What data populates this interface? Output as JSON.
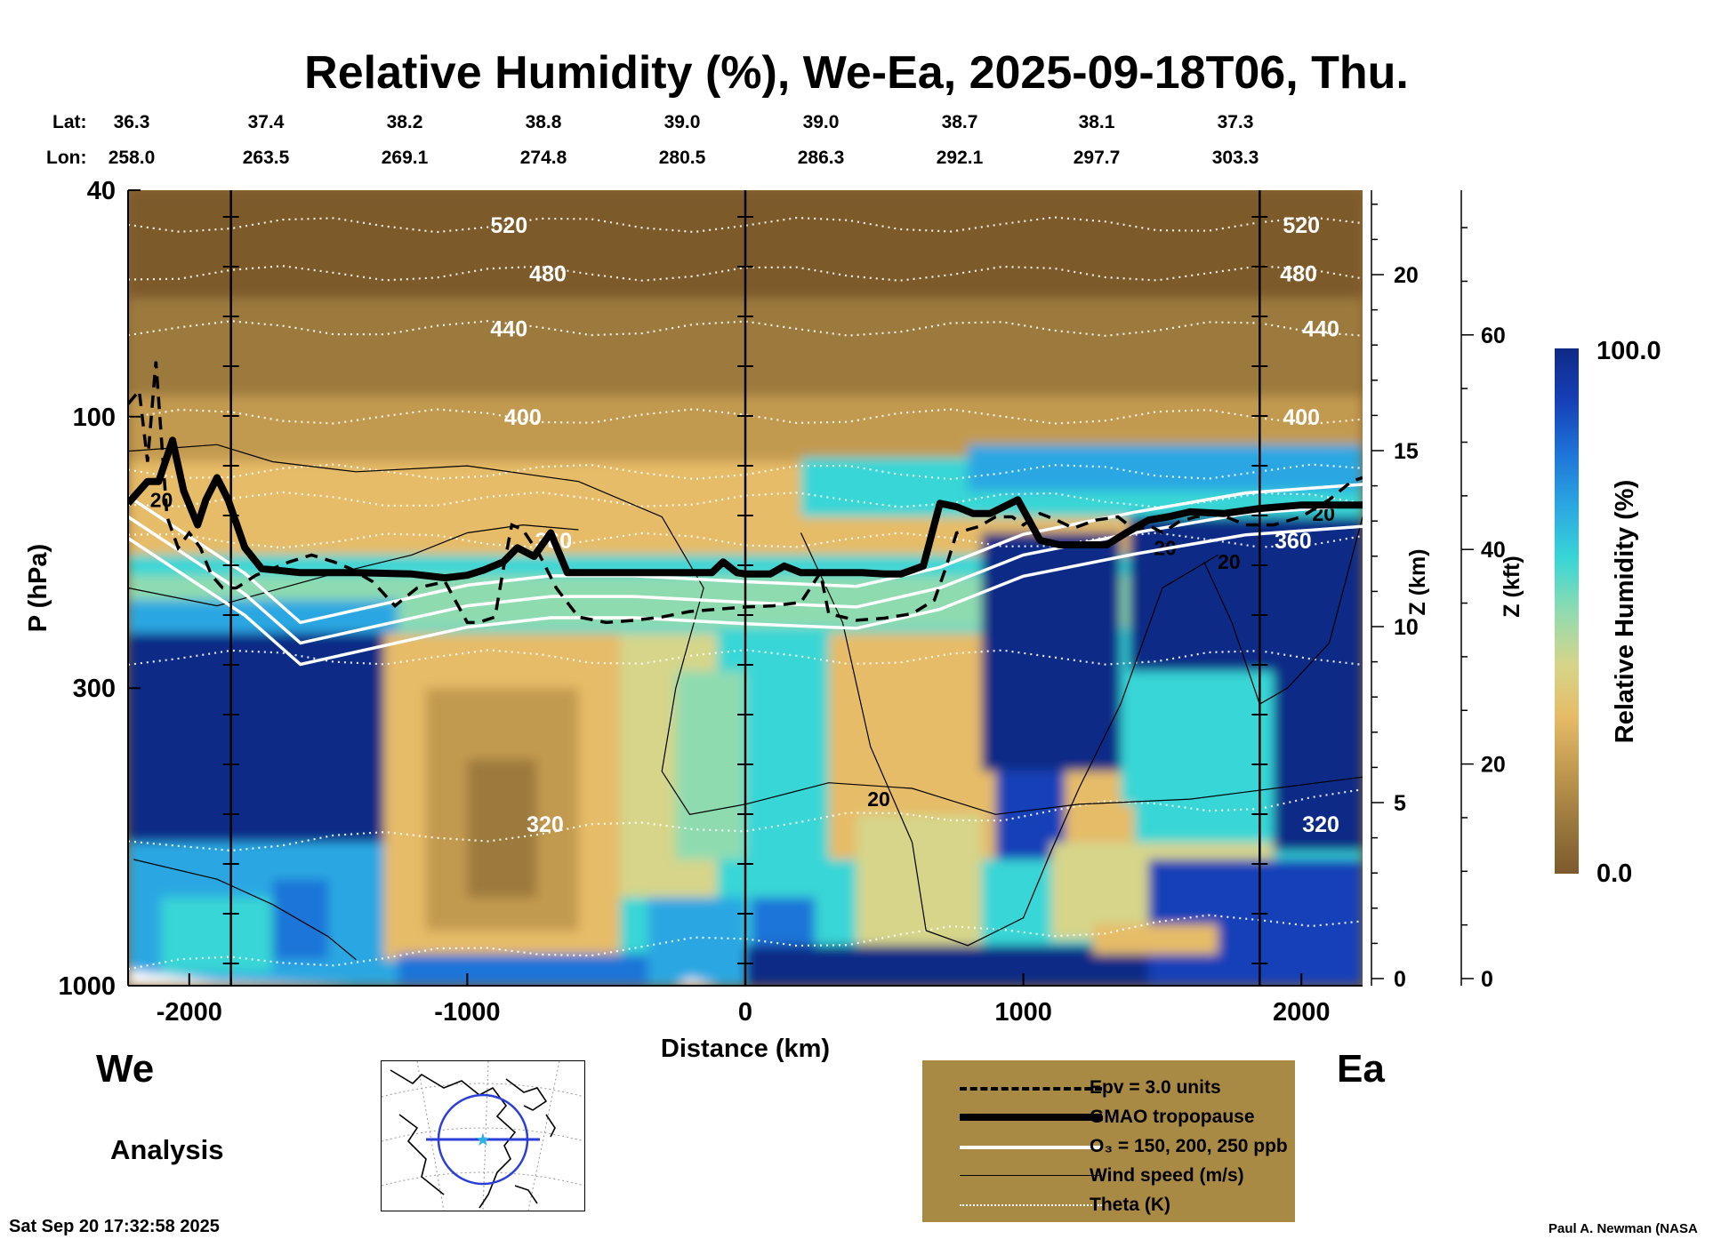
{
  "page": {
    "title": "Relative Humidity (%), We-Ea, 2025-09-18T06, Thu.",
    "lat_label": "Lat:",
    "lon_label": "Lon:",
    "lat_values": [
      "36.3",
      "37.4",
      "38.2",
      "38.8",
      "39.0",
      "39.0",
      "38.7",
      "38.1",
      "37.3"
    ],
    "lon_values": [
      "258.0",
      "263.5",
      "269.1",
      "274.8",
      "280.5",
      "286.3",
      "292.1",
      "297.7",
      "303.3"
    ],
    "west_label": "We",
    "east_label": "Ea",
    "analysis_label": "Analysis",
    "timestamp": "Sat Sep 20 17:32:58 2025",
    "credit": "Paul A. Newman (NASA"
  },
  "legend": {
    "items": [
      {
        "label": "Epv = 3.0 units",
        "style": "dashed-thick"
      },
      {
        "label": "GMAO tropopause",
        "style": "black-thick"
      },
      {
        "label": "O₃ = 150, 200, 250 ppb",
        "style": "white"
      },
      {
        "label": "Wind speed (m/s)",
        "style": "black-thin"
      },
      {
        "label": "Theta (K)",
        "style": "white-dotted"
      }
    ]
  },
  "chart_data": {
    "type": "heatmap",
    "title": "Relative Humidity (%), We-Ea, 2025-09-18T06, Thu.",
    "xlabel": "Distance (km)",
    "ylabel": "P (hPa)",
    "xlim": [
      -2220,
      2220
    ],
    "ylim": [
      1000,
      40
    ],
    "x_ticks": [
      -2000,
      -1000,
      0,
      1000,
      2000
    ],
    "x_tick_labels": [
      "-2000",
      "-1000",
      "0",
      "1000",
      "2000"
    ],
    "y_ticks": [
      40,
      100,
      300,
      1000
    ],
    "y_tick_labels": [
      "40",
      "100",
      "300",
      "1000"
    ],
    "z_km_ticks": [
      0,
      5,
      10,
      15,
      20
    ],
    "z_km_label": "Z (km)",
    "z_kft_ticks": [
      0,
      20,
      40,
      60
    ],
    "z_kft_label": "Z (kft)",
    "vertical_markers_km": [
      -1850,
      0,
      1850
    ],
    "colorbar": {
      "label": "Relative Humidity (%)",
      "min": 0.0,
      "max": 100.0,
      "min_label": "0.0",
      "max_label": "100.0",
      "colors": [
        "#7d5a2c",
        "#9c7a3e",
        "#c29a50",
        "#e6bc68",
        "#d6d58a",
        "#8fdbb0",
        "#38d6d6",
        "#2aa7e2",
        "#1e74d8",
        "#1640b8",
        "#0f2a86"
      ]
    },
    "theta_contours_K": [
      {
        "label": "520",
        "p": 46,
        "label_positions_km": [
          -850,
          2000
        ]
      },
      {
        "label": "480",
        "p": 56,
        "label_positions_km": [
          -710,
          1990
        ]
      },
      {
        "label": "440",
        "p": 70,
        "label_positions_km": [
          -850,
          2070
        ]
      },
      {
        "label": "400",
        "p": 100,
        "label_positions_km": [
          -800,
          2000
        ]
      },
      {
        "label": "360",
        "p": 165,
        "label_positions_km": [
          -690,
          1970
        ]
      },
      {
        "label": "320",
        "p": 520,
        "label_positions_km": [
          -720,
          2070
        ]
      },
      {
        "label": "",
        "p": 125
      },
      {
        "label": "",
        "p": 140
      },
      {
        "label": "",
        "p": 265
      },
      {
        "label": "",
        "p": 840
      }
    ],
    "wind_contour_labels": [
      {
        "label": "20",
        "x_km": -2100,
        "p": 140
      },
      {
        "label": "20",
        "x_km": 480,
        "p": 470
      },
      {
        "label": "20",
        "x_km": 1510,
        "p": 170
      },
      {
        "label": "20",
        "x_km": 1740,
        "p": 180
      },
      {
        "label": "20",
        "x_km": 2080,
        "p": 148
      }
    ],
    "series": [
      {
        "name": "GMAO tropopause",
        "x": [
          -2220,
          -2150,
          -2110,
          -2060,
          -2020,
          -1970,
          -1940,
          -1900,
          -1860,
          -1800,
          -1740,
          -1600,
          -1400,
          -1200,
          -1080,
          -1000,
          -940,
          -870,
          -820,
          -760,
          -700,
          -640,
          -540,
          -420,
          -260,
          -120,
          -80,
          -30,
          0,
          90,
          140,
          200,
          300,
          420,
          500,
          560,
          640,
          700,
          760,
          820,
          880,
          980,
          1060,
          1130,
          1300,
          1370,
          1450,
          1520,
          1600,
          1720,
          1850,
          2000,
          2220
        ],
        "p": [
          142,
          130,
          130,
          110,
          135,
          155,
          140,
          128,
          140,
          170,
          185,
          188,
          188,
          189,
          192,
          190,
          186,
          180,
          170,
          176,
          160,
          188,
          188,
          188,
          188,
          188,
          180,
          188,
          189,
          189,
          183,
          188,
          188,
          188,
          189,
          189,
          183,
          142,
          144,
          148,
          148,
          140,
          165,
          168,
          168,
          160,
          152,
          150,
          147,
          148,
          145,
          143,
          143
        ]
      },
      {
        "name": "Epv = 3.0 units",
        "x": [
          -2220,
          -2180,
          -2150,
          -2120,
          -2080,
          -2040,
          -2000,
          -1960,
          -1920,
          -1880,
          -1830,
          -1760,
          -1700,
          -1640,
          -1560,
          -1480,
          -1420,
          -1340,
          -1260,
          -1180,
          -1080,
          -1000,
          -960,
          -900,
          -870,
          -840,
          -800,
          -740,
          -680,
          -600,
          -500,
          -400,
          -300,
          -200,
          -100,
          0,
          100,
          200,
          240,
          270,
          300,
          400,
          500,
          600,
          680,
          720,
          760,
          840,
          900,
          960,
          1000,
          1060,
          1120,
          1180,
          1260,
          1340,
          1400,
          1460,
          1500,
          1560,
          1620,
          1700,
          1800,
          1900,
          2000,
          2100,
          2180,
          2220
        ],
        "p": [
          95,
          90,
          120,
          80,
          150,
          170,
          160,
          170,
          190,
          200,
          200,
          190,
          185,
          180,
          175,
          180,
          185,
          195,
          215,
          200,
          195,
          230,
          230,
          225,
          185,
          155,
          158,
          175,
          200,
          225,
          230,
          228,
          225,
          220,
          218,
          216,
          215,
          212,
          198,
          188,
          222,
          228,
          226,
          222,
          210,
          185,
          160,
          156,
          150,
          150,
          155,
          148,
          152,
          157,
          152,
          150,
          158,
          156,
          160,
          153,
          150,
          148,
          155,
          155,
          150,
          140,
          130,
          128
        ]
      },
      {
        "name": "O3 contours",
        "x": [
          -2220,
          -1800,
          -1600,
          -1000,
          -700,
          -400,
          0,
          400,
          700,
          1000,
          1400,
          1800,
          2220
        ],
        "p": [
          150,
          205,
          250,
          215,
          207,
          207,
          212,
          216,
          200,
          175,
          160,
          148,
          143
        ]
      }
    ]
  }
}
